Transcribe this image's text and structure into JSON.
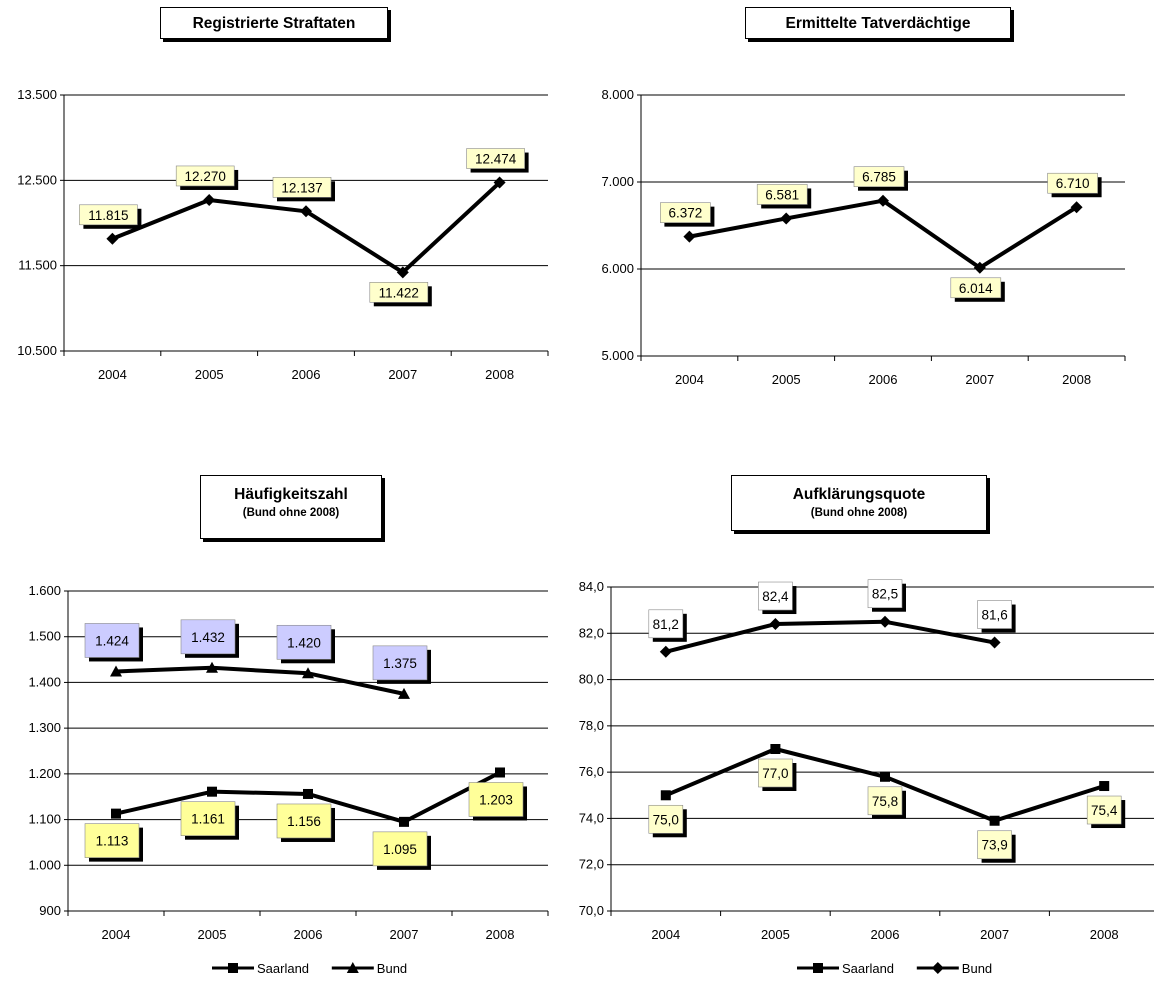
{
  "chart_data": [
    {
      "type": "line",
      "title": "Registrierte Straftaten",
      "subtitle": "",
      "categories": [
        "2004",
        "2005",
        "2006",
        "2007",
        "2008"
      ],
      "ylim": [
        10500,
        13500
      ],
      "yticks": [
        10500,
        11500,
        12500,
        13500
      ],
      "ytick_labels": [
        "10.500",
        "11.500",
        "12.500",
        "13.500"
      ],
      "grid": true,
      "legend": [],
      "series": [
        {
          "marker": "diamond",
          "values": [
            11815,
            12270,
            12137,
            11422,
            12474
          ],
          "labels": [
            "11.815",
            "12.270",
            "12.137",
            "11.422",
            "12.474"
          ],
          "label_color": "#ffffcc",
          "label_pos": [
            "above",
            "above",
            "above",
            "below",
            "above"
          ]
        }
      ]
    },
    {
      "type": "line",
      "title": "Ermittelte Tatverdächtige",
      "subtitle": "",
      "categories": [
        "2004",
        "2005",
        "2006",
        "2007",
        "2008"
      ],
      "ylim": [
        5000,
        8000
      ],
      "yticks": [
        5000,
        6000,
        7000,
        8000
      ],
      "ytick_labels": [
        "5.000",
        "6.000",
        "7.000",
        "8.000"
      ],
      "grid": true,
      "legend": [],
      "series": [
        {
          "marker": "diamond",
          "values": [
            6372,
            6581,
            6785,
            6014,
            6710
          ],
          "labels": [
            "6.372",
            "6.581",
            "6.785",
            "6.014",
            "6.710"
          ],
          "label_color": "#ffffcc",
          "label_pos": [
            "above",
            "above",
            "above",
            "below",
            "above"
          ]
        }
      ]
    },
    {
      "type": "line",
      "title": "Häufigkeitszahl",
      "subtitle": "(Bund ohne 2008)",
      "categories": [
        "2004",
        "2005",
        "2006",
        "2007",
        "2008"
      ],
      "ylim": [
        900,
        1600
      ],
      "yticks": [
        900,
        1000,
        1100,
        1200,
        1300,
        1400,
        1500,
        1600
      ],
      "ytick_labels": [
        "900",
        "1.000",
        "1.100",
        "1.200",
        "1.300",
        "1.400",
        "1.500",
        "1.600"
      ],
      "grid": true,
      "legend": [
        "Saarland",
        "Bund"
      ],
      "series": [
        {
          "name": "Saarland",
          "marker": "square",
          "values": [
            1113,
            1161,
            1156,
            1095,
            1203
          ],
          "labels": [
            "1.113",
            "1.161",
            "1.156",
            "1.095",
            "1.203"
          ],
          "label_color": "#ffff99",
          "label_pos": [
            "below",
            "below",
            "below",
            "below",
            "below"
          ]
        },
        {
          "name": "Bund",
          "marker": "triangle",
          "values": [
            1424,
            1432,
            1420,
            1375,
            null
          ],
          "labels": [
            "1.424",
            "1.432",
            "1.420",
            "1.375",
            ""
          ],
          "label_color": "#ccccff",
          "label_pos": [
            "above",
            "above",
            "above",
            "above",
            "above"
          ]
        }
      ]
    },
    {
      "type": "line",
      "title": "Aufklärungsquote",
      "subtitle": "(Bund ohne 2008)",
      "categories": [
        "2004",
        "2005",
        "2006",
        "2007",
        "2008"
      ],
      "ylim": [
        70,
        84
      ],
      "yticks": [
        70,
        72,
        74,
        76,
        78,
        80,
        82,
        84
      ],
      "ytick_labels": [
        "70,0",
        "72,0",
        "74,0",
        "76,0",
        "78,0",
        "80,0",
        "82,0",
        "84,0"
      ],
      "grid": true,
      "legend": [
        "Saarland",
        "Bund"
      ],
      "series": [
        {
          "name": "Saarland",
          "marker": "square",
          "values": [
            75.0,
            77.0,
            75.8,
            73.9,
            75.4
          ],
          "labels": [
            "75,0",
            "77,0",
            "75,8",
            "73,9",
            "75,4"
          ],
          "label_color": "#ffffcc",
          "label_pos": [
            "below",
            "below",
            "below",
            "below",
            "below"
          ]
        },
        {
          "name": "Bund",
          "marker": "diamond",
          "values": [
            81.2,
            82.4,
            82.5,
            81.6,
            null
          ],
          "labels": [
            "81,2",
            "82,4",
            "82,5",
            "81,6",
            ""
          ],
          "label_color": "#ffffff",
          "label_pos": [
            "above",
            "above",
            "above",
            "above",
            "above"
          ]
        }
      ]
    }
  ]
}
